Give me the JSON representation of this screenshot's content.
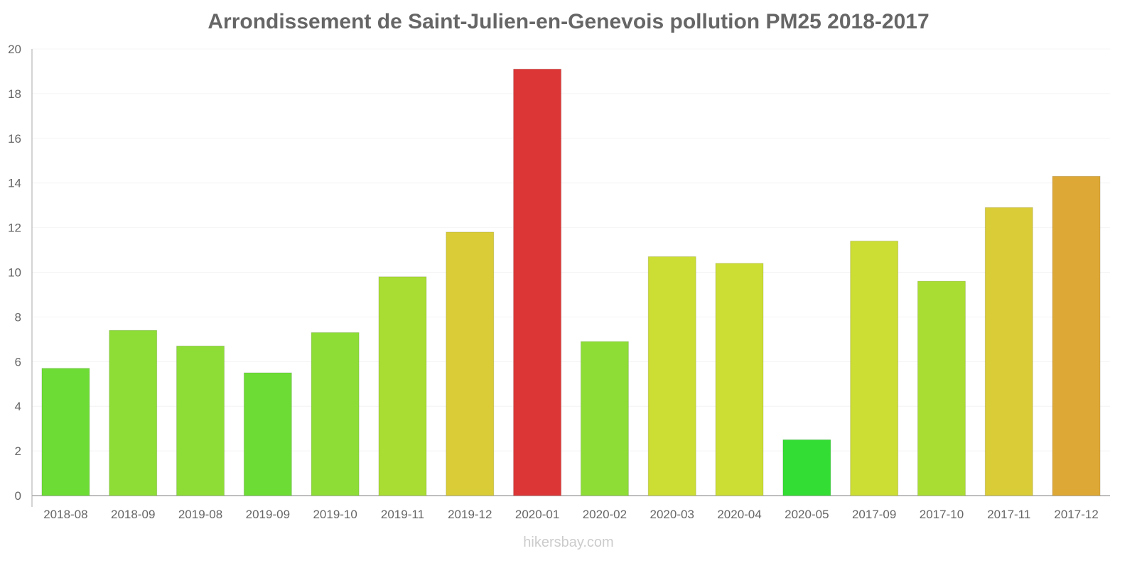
{
  "chart_data": {
    "type": "bar",
    "title": "Arrondissement de Saint-Julien-en-Genevois pollution PM25 2018-2017",
    "xlabel": "",
    "ylabel": "",
    "ylim": [
      0,
      20
    ],
    "yticks": [
      0,
      2,
      4,
      6,
      8,
      10,
      12,
      14,
      16,
      18,
      20
    ],
    "grid": true,
    "categories": [
      "2018-08",
      "2018-09",
      "2019-08",
      "2019-09",
      "2019-10",
      "2019-11",
      "2019-12",
      "2020-01",
      "2020-02",
      "2020-03",
      "2020-04",
      "2020-05",
      "2017-09",
      "2017-10",
      "2017-11",
      "2017-12"
    ],
    "values": [
      5.7,
      7.4,
      6.7,
      5.5,
      7.3,
      9.8,
      11.8,
      19.1,
      6.9,
      10.7,
      10.4,
      2.5,
      11.4,
      9.6,
      12.9,
      14.3
    ],
    "colors": [
      "#6ddd36",
      "#8ddd36",
      "#8ddd36",
      "#6ddd36",
      "#8ddd36",
      "#aadd33",
      "#d9cc36",
      "#dd3636",
      "#8ddd36",
      "#ccdd33",
      "#ccdd33",
      "#33dd33",
      "#ccdd33",
      "#aadd33",
      "#d9cc36",
      "#dda836"
    ]
  },
  "footer": "hikersbay.com"
}
